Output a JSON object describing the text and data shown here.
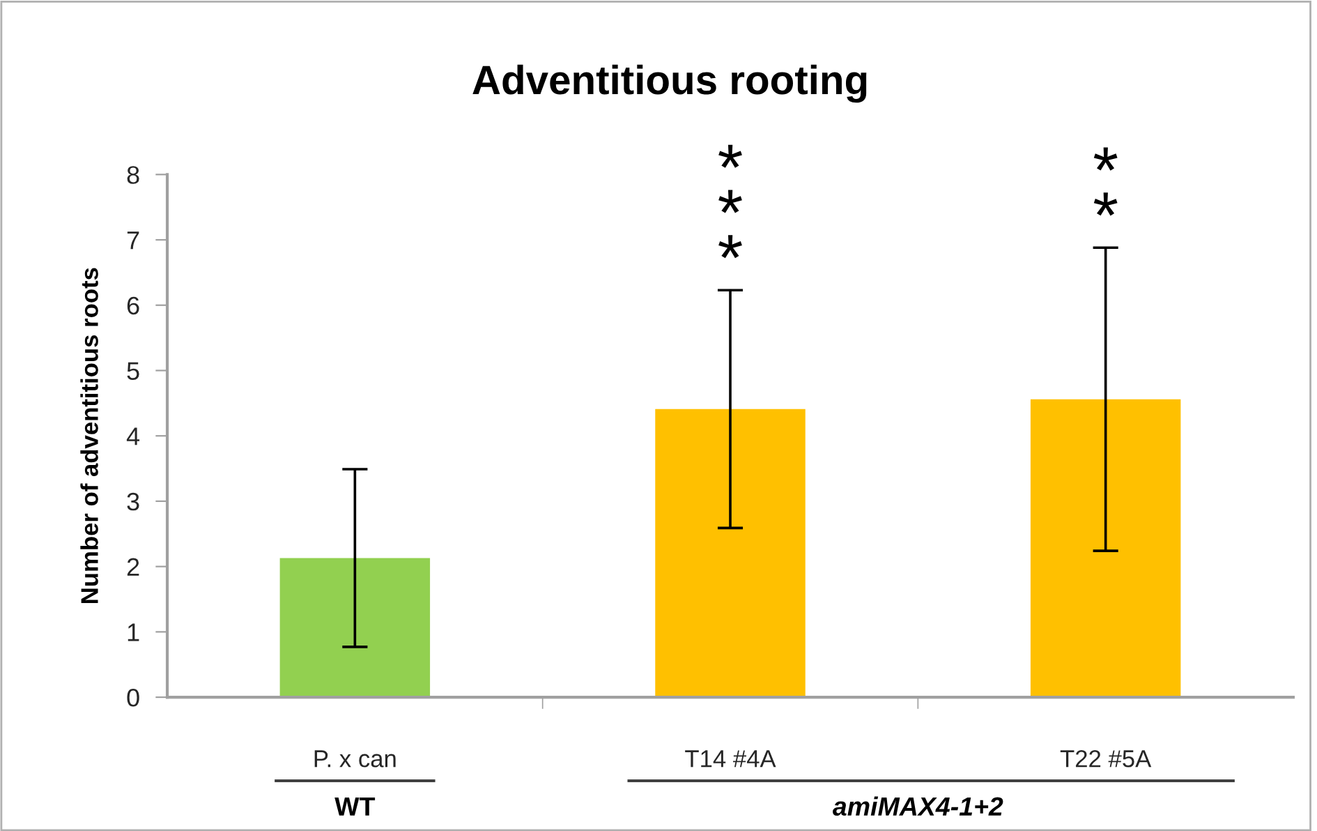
{
  "chart_data": {
    "type": "bar",
    "title": "Adventitious rooting",
    "ylabel": "Number of adventitious roots",
    "categories": [
      "P. x can",
      "T14 #4A",
      "T22 #5A"
    ],
    "values": [
      2.13,
      4.41,
      4.56
    ],
    "errors": [
      1.36,
      1.82,
      2.32
    ],
    "colors": [
      "#92d050",
      "#ffc000",
      "#ffc000"
    ],
    "ylim": [
      0,
      8
    ],
    "yticks": [
      0,
      1,
      2,
      3,
      4,
      5,
      6,
      7,
      8
    ],
    "annotations": [
      "*\n*\n*",
      "*\n*",
      "WT",
      "amiMAX4-1+2"
    ]
  }
}
